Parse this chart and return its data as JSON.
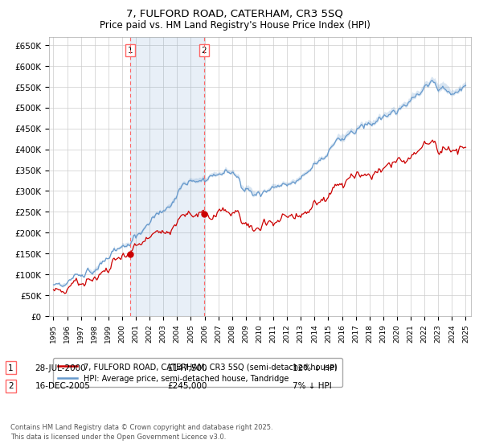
{
  "title": "7, FULFORD ROAD, CATERHAM, CR3 5SQ",
  "subtitle": "Price paid vs. HM Land Registry's House Price Index (HPI)",
  "ylabel_ticks": [
    "£0",
    "£50K",
    "£100K",
    "£150K",
    "£200K",
    "£250K",
    "£300K",
    "£350K",
    "£400K",
    "£450K",
    "£500K",
    "£550K",
    "£600K",
    "£650K"
  ],
  "ytick_values": [
    0,
    50000,
    100000,
    150000,
    200000,
    250000,
    300000,
    350000,
    400000,
    450000,
    500000,
    550000,
    600000,
    650000
  ],
  "x_start_year": 1995,
  "x_end_year": 2025,
  "legend_line1": "7, FULFORD ROAD, CATERHAM, CR3 5SQ (semi-detached house)",
  "legend_line2": "HPI: Average price, semi-detached house, Tandridge",
  "purchase1_label": "1",
  "purchase1_date": "28-JUL-2000",
  "purchase1_price": "£147,500",
  "purchase1_hpi": "12% ↓ HPI",
  "purchase1_year": 2000.57,
  "purchase1_value": 147500,
  "purchase2_label": "2",
  "purchase2_date": "16-DEC-2005",
  "purchase2_price": "£245,000",
  "purchase2_hpi": "7% ↓ HPI",
  "purchase2_year": 2005.96,
  "purchase2_value": 245000,
  "line_color_property": "#cc0000",
  "line_color_hpi": "#6699cc",
  "fill_color_between": "#ddeeff",
  "background_color": "#ffffff",
  "grid_color": "#cccccc",
  "vline_color": "#ff6666",
  "footnote": "Contains HM Land Registry data © Crown copyright and database right 2025.\nThis data is licensed under the Open Government Licence v3.0."
}
